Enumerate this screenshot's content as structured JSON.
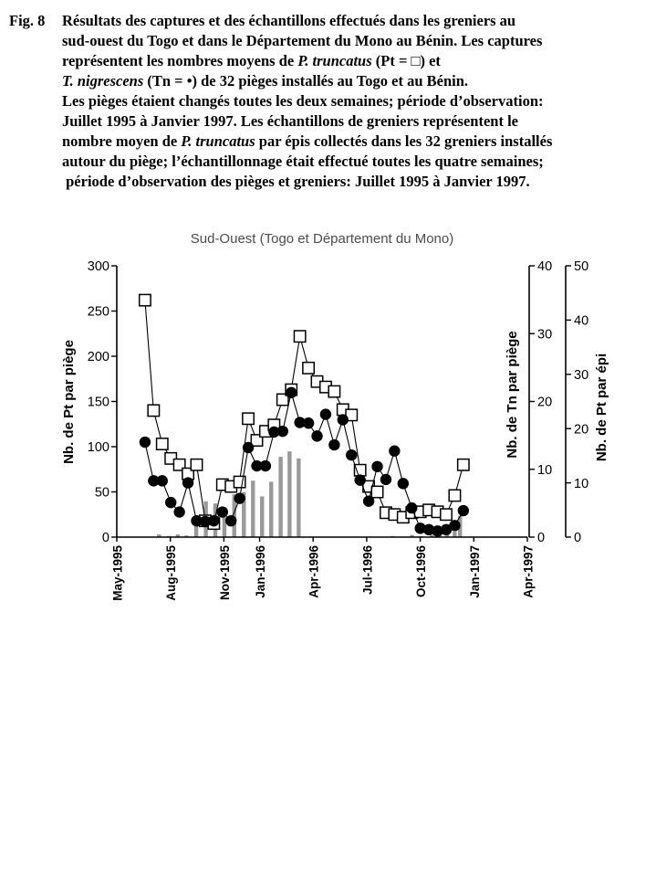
{
  "caption": {
    "fig_label": "Fig. 8",
    "lines": [
      [
        {
          "t": "Résultats des captures et des échantillons effectués dans les greniers au"
        }
      ],
      [
        {
          "t": "sud-ouest du Togo et dans le Département du Mono au Bénin. Les captures"
        }
      ],
      [
        {
          "t": "représentent les nombres moyens de "
        },
        {
          "t": "P. truncatus",
          "i": 1
        },
        {
          "t": " (Pt = □) et"
        }
      ],
      [
        {
          "t": "T. nigrescens",
          "i": 1
        },
        {
          "t": " (Tn = •) de 32 pièges installés au Togo et au Bénin."
        }
      ],
      [
        {
          "t": "Les pièges étaient changés toutes les deux semaines; période d’observation:"
        }
      ],
      [
        {
          "t": "Juillet 1995 à Janvier 1997. Les échantillons de greniers représentent le"
        }
      ],
      [
        {
          "t": "nombre moyen de "
        },
        {
          "t": "P. truncatus",
          "i": 1
        },
        {
          "t": " par épis collectés dans les 32 greniers installés"
        }
      ],
      [
        {
          "t": "autour du piège; l’échantillonnage était effectué toutes les quatre semaines;"
        }
      ],
      [
        {
          "t": " période d’observation des pièges et greniers: Juillet 1995 à Janvier 1997."
        }
      ]
    ]
  },
  "chart_data": {
    "type": "line+bar",
    "title": "Sud-Ouest (Togo et Département du Mono)",
    "title_color": "#4d4d4d",
    "grid": false,
    "legend": false,
    "x_axis": {
      "tick_labels": [
        "May-1995",
        "Aug-1995",
        "Nov-1995",
        "Jan-1996",
        "Apr-1996",
        "Jul-1996",
        "Oct-1996",
        "Jan-1997",
        "Apr-1997"
      ],
      "tick_months": [
        0,
        3,
        6,
        8,
        11,
        14,
        17,
        20,
        23
      ],
      "range_months": [
        0,
        23
      ]
    },
    "left_axis": {
      "label": "Nb. de Pt par piège",
      "min": 0,
      "max": 300,
      "tick_step": 50,
      "tick_labels": [
        "0",
        "50",
        "100",
        "150",
        "200",
        "250",
        "300"
      ]
    },
    "right_axis_tn": {
      "label": "Nb. de Tn par piège",
      "min": 0,
      "max": 40,
      "tick_step": 10,
      "tick_labels": [
        "0",
        "10",
        "20",
        "30",
        "40"
      ]
    },
    "right_axis_epi": {
      "label": "Nb. de Pt par épi",
      "min": 0,
      "max": 50,
      "tick_step": 10,
      "tick_labels": [
        "0",
        "10",
        "20",
        "30",
        "40",
        "50"
      ]
    },
    "series": [
      {
        "name": "Pt - P. truncatus capturés par piège",
        "marker": "open-square",
        "axis": "left",
        "color": "#000000",
        "fill": "#ffffff",
        "m_start": 1.58,
        "m_step": 0.482,
        "values": [
          262,
          140,
          103,
          87,
          80,
          70,
          80,
          18,
          15,
          58,
          56,
          61,
          131,
          107,
          117,
          124,
          152,
          163,
          222,
          187,
          172,
          166,
          161,
          141,
          135,
          74,
          56,
          50,
          27,
          25,
          22,
          27,
          28,
          30,
          28,
          25,
          46,
          80
        ]
      },
      {
        "name": "Tn - T. nigrescens capturés par piège",
        "marker": "filled-circle",
        "axis": "tn",
        "color": "#000000",
        "m_start": 1.58,
        "m_step": 0.482,
        "values": [
          14,
          8.3,
          8.3,
          5.1,
          3.7,
          8,
          2.4,
          2.3,
          2.4,
          3.7,
          2.4,
          5.7,
          13.2,
          10.5,
          10.5,
          15.5,
          15.6,
          21.3,
          16.9,
          16.8,
          14.9,
          18.1,
          13.6,
          17.3,
          12.1,
          8.4,
          5.3,
          10.4,
          8.5,
          12.7,
          7.9,
          4.3,
          1.3,
          1.1,
          0.9,
          1.1,
          1.7,
          3.9
        ]
      }
    ],
    "bars": {
      "name": "Pt par épi (échantillons de greniers)",
      "axis": "epi",
      "color": "#999999",
      "points": [
        [
          2.37,
          0.5
        ],
        [
          2.91,
          0.2
        ],
        [
          3.42,
          0.5
        ],
        [
          3.9,
          0.3
        ],
        [
          4.45,
          3.9
        ],
        [
          4.99,
          6.6
        ],
        [
          5.52,
          6.2
        ],
        [
          6.03,
          3.7
        ],
        [
          6.58,
          7.9
        ],
        [
          7.12,
          8.3
        ],
        [
          7.63,
          10.4
        ],
        [
          8.14,
          7.5
        ],
        [
          8.65,
          10.2
        ],
        [
          9.18,
          14.8
        ],
        [
          9.68,
          15.8
        ],
        [
          10.19,
          14.5
        ],
        [
          15.44,
          0.2
        ],
        [
          16.54,
          0.4
        ],
        [
          17.06,
          0.2
        ],
        [
          17.65,
          0.4
        ],
        [
          18.08,
          0.7
        ],
        [
          18.5,
          0.7
        ],
        [
          18.93,
          1.0
        ],
        [
          19.23,
          3.9
        ]
      ]
    }
  }
}
